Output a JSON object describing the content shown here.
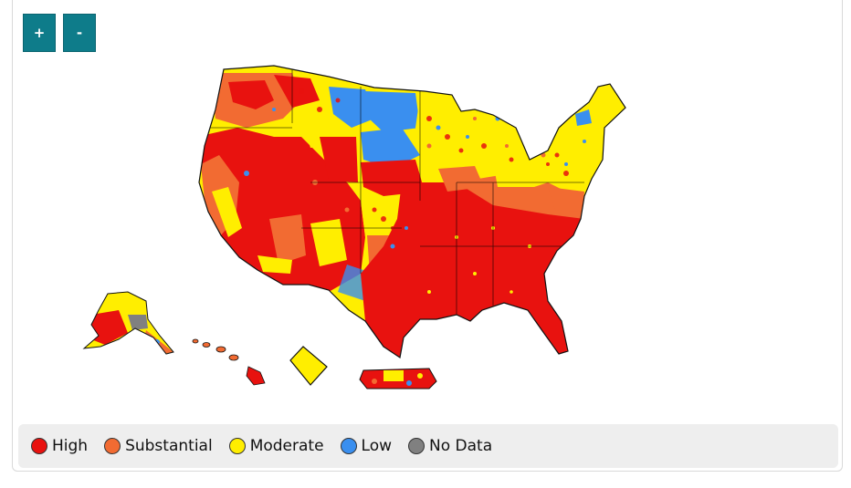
{
  "map_controls": {
    "zoom_in_label": "+",
    "zoom_out_label": "-"
  },
  "map": {
    "regions": [
      "contiguous-us",
      "alaska",
      "hawaii",
      "district-of-columbia-inset",
      "puerto-rico"
    ],
    "colors": {
      "High": "#e8120f",
      "Substantial": "#f26b32",
      "Moderate": "#ffee00",
      "Low": "#3a8fef",
      "No Data": "#808080"
    }
  },
  "legend": {
    "items": [
      {
        "label": "High",
        "color": "#e8120f"
      },
      {
        "label": "Substantial",
        "color": "#f26b32"
      },
      {
        "label": "Moderate",
        "color": "#ffee00"
      },
      {
        "label": "Low",
        "color": "#3a8fef"
      },
      {
        "label": "No Data",
        "color": "#808080"
      }
    ]
  }
}
